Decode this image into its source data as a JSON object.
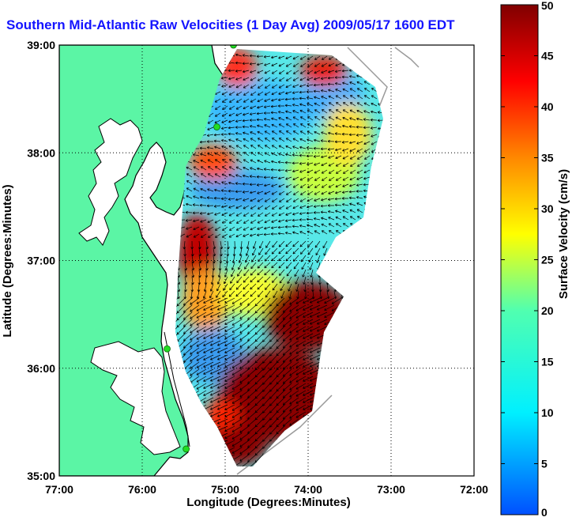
{
  "title": "Southern Mid-Atlantic Raw Velocities (1 Day Avg) 2009/05/17 1600 EDT",
  "x_axis": {
    "label": "Longitude (Degrees:Minutes)",
    "ticks": [
      "77:00",
      "76:00",
      "75:00",
      "74:00",
      "73:00",
      "72:00"
    ]
  },
  "y_axis": {
    "label": "Latitude (Degrees:Minutes)",
    "ticks": [
      "39:00",
      "38:00",
      "37:00",
      "36:00",
      "35:00"
    ]
  },
  "colorbar": {
    "label": "Surface Velocity (cm/s)",
    "ticks": [
      "50",
      "45",
      "40",
      "35",
      "30",
      "25",
      "20",
      "15",
      "10",
      "5",
      "0"
    ],
    "range": [
      0,
      50
    ]
  },
  "map_extent": {
    "lon": [
      -77,
      -72
    ],
    "lat": [
      35,
      39
    ]
  },
  "grid": "dotted",
  "colors": {
    "title": "#1414ff",
    "land": "#5bf5a5",
    "water": "#ffffff",
    "coast": "#000000",
    "vectors": "#000000",
    "station": "#22dd22"
  },
  "stations": [
    {
      "lon": -74.9,
      "lat": 39.0
    },
    {
      "lon": -75.1,
      "lat": 38.24
    },
    {
      "lon": -75.7,
      "lat": 36.18
    },
    {
      "lon": -75.47,
      "lat": 35.25
    }
  ]
}
